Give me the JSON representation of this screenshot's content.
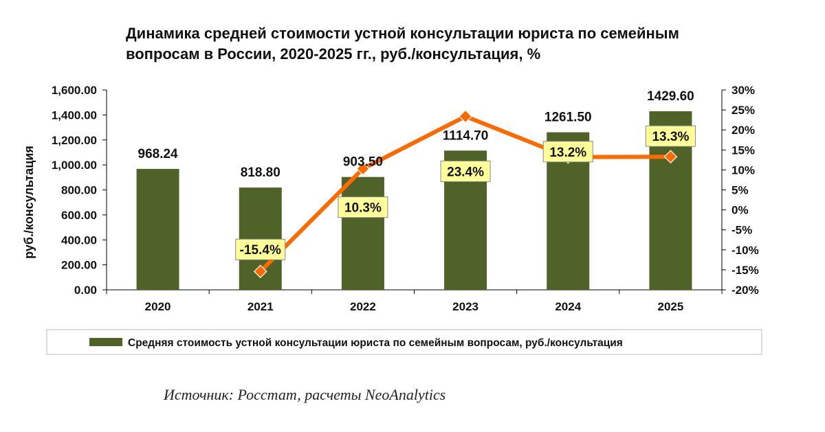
{
  "chart_data": {
    "type": "bar+line",
    "title_lines": [
      "Динамика средней стоимости устной консультации юриста по семейным",
      "вопросам в России, 2020-2025 гг., руб./консультация, %"
    ],
    "categories": [
      "2020",
      "2021",
      "2022",
      "2023",
      "2024",
      "2025"
    ],
    "bar_series": {
      "name": "Средняя стоимость устной консультации юриста по семейным вопросам, руб./консультация",
      "values": [
        968.24,
        818.8,
        903.5,
        1114.7,
        1261.5,
        1429.6
      ],
      "labels": [
        "968.24",
        "818.80",
        "903.50",
        "1114.70",
        "1261.50",
        "1429.60"
      ],
      "color": "#4f6228"
    },
    "line_series": {
      "values": [
        null,
        -15.4,
        10.3,
        23.4,
        13.2,
        13.3
      ],
      "labels": [
        "",
        "-15.4%",
        "10.3%",
        "23.4%",
        "13.2%",
        "13.3%"
      ],
      "color": "#ff6a00",
      "marker_color": "#ff6a00",
      "label_box_fill": "#ffff99"
    },
    "y_left": {
      "label": "руб./консультация",
      "ylim": [
        0,
        1600
      ],
      "ticks": [
        0,
        200,
        400,
        600,
        800,
        1000,
        1200,
        1400,
        1600
      ],
      "tick_labels": [
        "0.00",
        "200.00",
        "400.00",
        "600.00",
        "800.00",
        "1,000.00",
        "1,200.00",
        "1,400.00",
        "1,600.00"
      ]
    },
    "y_right": {
      "ylim": [
        -20,
        30
      ],
      "ticks": [
        -20,
        -15,
        -10,
        -5,
        0,
        5,
        10,
        15,
        20,
        25,
        30
      ],
      "tick_labels": [
        "-20%",
        "-15%",
        "-10%",
        "-5%",
        "0%",
        "5%",
        "10%",
        "15%",
        "20%",
        "25%",
        "30%"
      ]
    },
    "legend": {
      "position": "bottom",
      "label": "Средняя стоимость устной консультации юриста по семейным вопросам, руб./консультация"
    }
  },
  "source_text": "Источник: Росстат, расчеты NeoAnalytics"
}
